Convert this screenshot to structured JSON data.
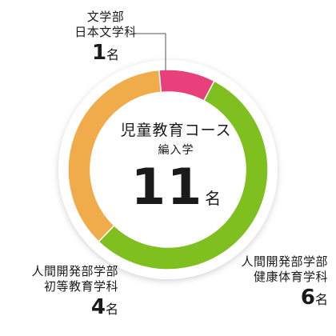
{
  "chart_data": {
    "type": "pie",
    "categories": [
      "文学部 日本文学科",
      "人間開発部学部 健康体育学科",
      "人間開発部学部 初等教育学科"
    ],
    "values": [
      1,
      6,
      4
    ],
    "colors": [
      "#e8407a",
      "#7fbf1f",
      "#f0ac4a"
    ],
    "total": 11,
    "unit": "名",
    "center_title": "児童教育コース",
    "center_subtitle": "編入学"
  },
  "labels": [
    {
      "line1": "文学部",
      "line2": "日本文学科",
      "count": "1",
      "unit": "名"
    },
    {
      "line1": "人間開発部学部",
      "line2": "健康体育学科",
      "count": "6",
      "unit": "名"
    },
    {
      "line1": "人間開発部学部",
      "line2": "初等教育学科",
      "count": "4",
      "unit": "名"
    }
  ],
  "center": {
    "title": "児童教育コース",
    "subtitle": "編入学",
    "total": "11",
    "unit": "名"
  }
}
